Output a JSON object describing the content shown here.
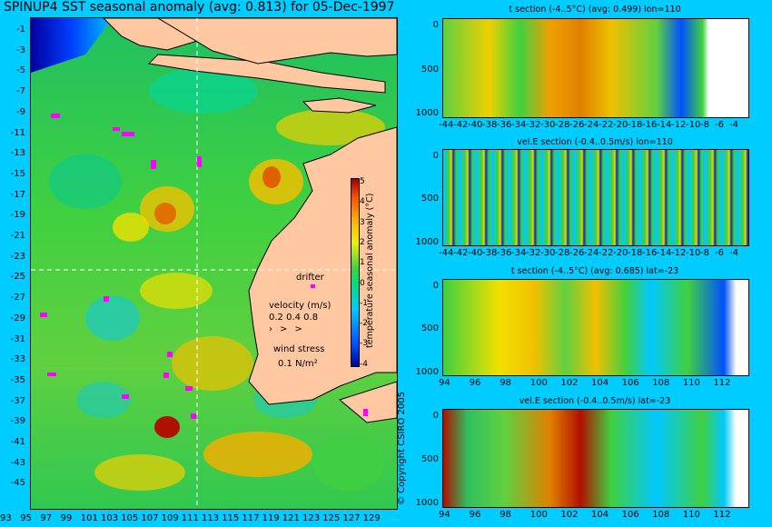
{
  "title": "SPINUP4 SST seasonal anomaly (avg: 0.813) for 05-Dec-1997",
  "map": {
    "lat_ticks": [
      "-1",
      "-3",
      "-5",
      "-7",
      "-9",
      "-11",
      "-13",
      "-15",
      "-17",
      "-19",
      "-21",
      "-23",
      "-25",
      "-27",
      "-29",
      "-31",
      "-33",
      "-35",
      "-37",
      "-39",
      "-41",
      "-43",
      "-45"
    ],
    "lon_ticks": [
      "93",
      "95",
      "97",
      "99",
      "101",
      "103",
      "105",
      "107",
      "109",
      "111",
      "113",
      "115",
      "117",
      "119",
      "121",
      "123",
      "125",
      "127",
      "129"
    ],
    "colorbar_label": "temperature seasonal anomaly (°C)",
    "colorbar_ticks": [
      "5",
      "4",
      "3",
      "2",
      "1",
      "0",
      "-1",
      "-2",
      "-3",
      "-4"
    ],
    "drifter_label": "drifter",
    "velocity_label": "velocity (m/s)",
    "velocity_scale": "0.2 0.4 0.8",
    "wind_label": "wind stress",
    "wind_scale": "0.1 N/m²"
  },
  "panels": [
    {
      "title": "t section (-4..5°C) (avg: 0.499) lon=110",
      "y_ticks": [
        "0",
        "500",
        "1000"
      ],
      "x_ticks": [
        "-44",
        "-42",
        "-40",
        "-38",
        "-36",
        "-34",
        "-32",
        "-30",
        "-28",
        "-26",
        "-24",
        "-22",
        "-20",
        "-18",
        "-16",
        "-14",
        "-12",
        "-10",
        "-8",
        "-6",
        "-4"
      ]
    },
    {
      "title": "vel.E section (-0.4..0.5m/s) lon=110",
      "y_ticks": [
        "0",
        "500",
        "1000"
      ],
      "x_ticks": [
        "-44",
        "-42",
        "-40",
        "-38",
        "-36",
        "-34",
        "-32",
        "-30",
        "-28",
        "-26",
        "-24",
        "-22",
        "-20",
        "-18",
        "-16",
        "-14",
        "-12",
        "-10",
        "-8",
        "-6",
        "-4"
      ]
    },
    {
      "title": "t section (-4..5°C) (avg: 0.685) lat=-23",
      "y_ticks": [
        "0",
        "500",
        "1000"
      ],
      "x_ticks": [
        "94",
        "96",
        "98",
        "100",
        "102",
        "104",
        "106",
        "108",
        "110",
        "112"
      ]
    },
    {
      "title": "vel.E section (-0.4..0.5m/s) lat=-23",
      "y_ticks": [
        "0",
        "500",
        "1000"
      ],
      "x_ticks": [
        "94",
        "96",
        "98",
        "100",
        "102",
        "104",
        "106",
        "108",
        "110",
        "112"
      ]
    }
  ],
  "copyright": "© Copyright CSIRO 2005"
}
